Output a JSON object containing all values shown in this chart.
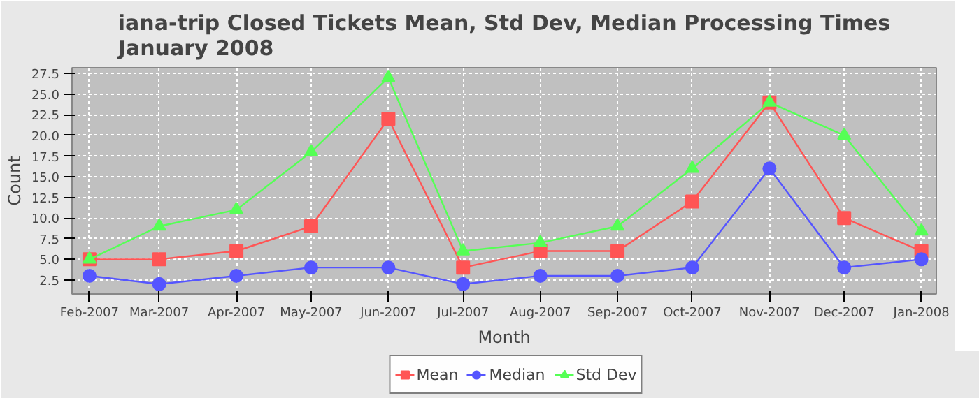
{
  "chart_data": {
    "type": "line",
    "title": "iana-trip Closed Tickets Mean, Std Dev, Median Processing Times January 2008",
    "xlabel": "Month",
    "ylabel": "Count",
    "x": [
      "2007-02-01",
      "2007-03-01",
      "2007-04-01",
      "2007-05-01",
      "2007-06-01",
      "2007-07-01",
      "2007-08-01",
      "2007-09-01",
      "2007-10-01",
      "2007-11-01",
      "2007-12-01",
      "2008-01-01"
    ],
    "xlim": [
      "2007-01-25",
      "2008-01-07"
    ],
    "xticks": [
      {
        "value": "2007-02-01",
        "label": "Feb-2007"
      },
      {
        "value": "2007-03-01",
        "label": "Mar-2007"
      },
      {
        "value": "2007-04-01",
        "label": "Apr-2007"
      },
      {
        "value": "2007-05-01",
        "label": "May-2007"
      },
      {
        "value": "2007-06-01",
        "label": "Jun-2007"
      },
      {
        "value": "2007-07-01",
        "label": "Jul-2007"
      },
      {
        "value": "2007-08-01",
        "label": "Aug-2007"
      },
      {
        "value": "2007-09-01",
        "label": "Sep-2007"
      },
      {
        "value": "2007-10-01",
        "label": "Oct-2007"
      },
      {
        "value": "2007-11-01",
        "label": "Nov-2007"
      },
      {
        "value": "2007-12-01",
        "label": "Dec-2007"
      },
      {
        "value": "2008-01-01",
        "label": "Jan-2008"
      }
    ],
    "ylim": [
      0.8,
      28.2
    ],
    "yticks": [
      {
        "value": 2.5,
        "label": "2.5"
      },
      {
        "value": 5,
        "label": "5.0"
      },
      {
        "value": 7.5,
        "label": "7.5"
      },
      {
        "value": 10,
        "label": "10.0"
      },
      {
        "value": 12.5,
        "label": "12.5"
      },
      {
        "value": 15,
        "label": "15.0"
      },
      {
        "value": 17.5,
        "label": "17.5"
      },
      {
        "value": 20,
        "label": "20.0"
      },
      {
        "value": 22.5,
        "label": "22.5"
      },
      {
        "value": 25,
        "label": "25.0"
      },
      {
        "value": 27.5,
        "label": "27.5"
      }
    ],
    "series": [
      {
        "name": "Mean",
        "color": "#ff5555",
        "marker": "square",
        "values": [
          5,
          5,
          6,
          9,
          22,
          4,
          6,
          6,
          12,
          24,
          10,
          6
        ]
      },
      {
        "name": "Median",
        "color": "#5555ff",
        "marker": "circle",
        "values": [
          3,
          2,
          3,
          4,
          4,
          2,
          3,
          3,
          4,
          16,
          4,
          5
        ]
      },
      {
        "name": "Std Dev",
        "color": "#55ff55",
        "marker": "triangle",
        "values": [
          5,
          9,
          11,
          18,
          27,
          6,
          7,
          9,
          16,
          24,
          20,
          8.4
        ]
      }
    ],
    "grid": true,
    "legend": "bottom",
    "line_style": "solid"
  }
}
